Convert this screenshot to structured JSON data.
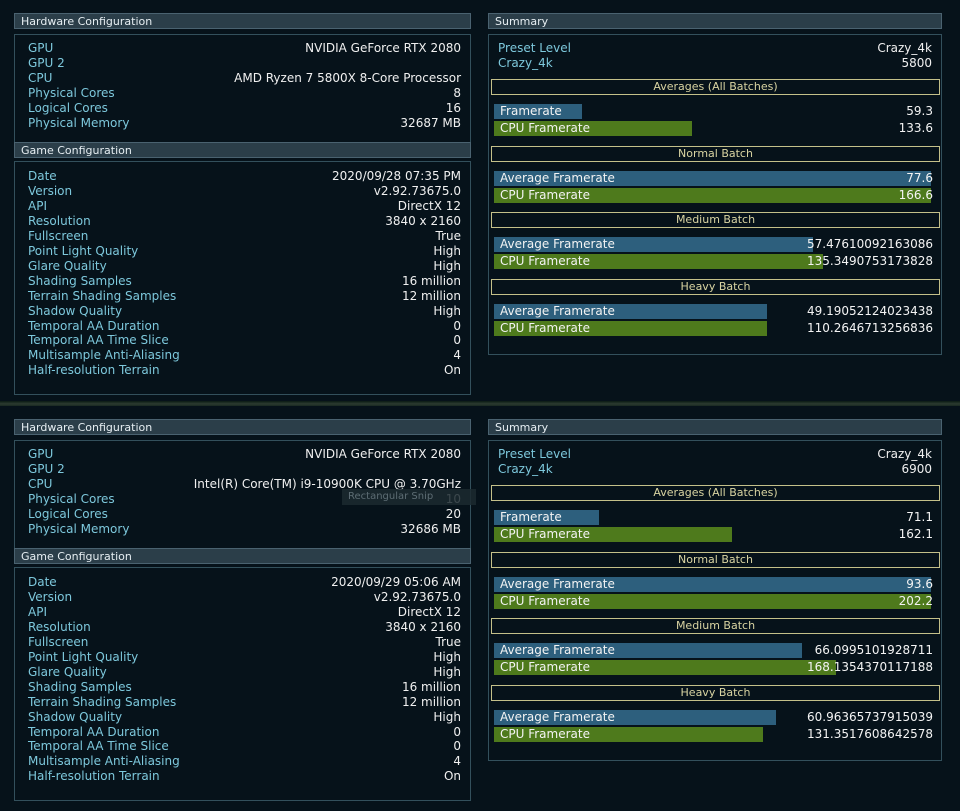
{
  "screenshots": [
    {
      "hardware": {
        "title": "Hardware Configuration",
        "rows": [
          {
            "label": "GPU",
            "value": "NVIDIA GeForce RTX 2080"
          },
          {
            "label": "GPU 2",
            "value": ""
          },
          {
            "label": "CPU",
            "value": "AMD Ryzen 7 5800X 8-Core Processor"
          },
          {
            "label": "Physical Cores",
            "value": "8"
          },
          {
            "label": "Logical Cores",
            "value": "16"
          },
          {
            "label": "Physical Memory",
            "value": "32687 MB"
          }
        ]
      },
      "game": {
        "title": "Game Configuration",
        "rows": [
          {
            "label": "Date",
            "value": "2020/09/28 07:35 PM"
          },
          {
            "label": "Version",
            "value": "v2.92.73675.0"
          },
          {
            "label": "API",
            "value": "DirectX 12"
          },
          {
            "label": "Resolution",
            "value": "3840 x 2160"
          },
          {
            "label": "Fullscreen",
            "value": "True"
          },
          {
            "label": "Point Light Quality",
            "value": "High"
          },
          {
            "label": "Glare Quality",
            "value": "High"
          },
          {
            "label": "Shading Samples",
            "value": "16 million"
          },
          {
            "label": "Terrain Shading Samples",
            "value": "12 million"
          },
          {
            "label": "Shadow Quality",
            "value": "High"
          },
          {
            "label": "Temporal AA Duration",
            "value": "0"
          },
          {
            "label": "Temporal AA Time Slice",
            "value": "0"
          },
          {
            "label": "Multisample Anti-Aliasing",
            "value": "4"
          },
          {
            "label": "Half-resolution Terrain",
            "value": "On"
          }
        ]
      },
      "summary": {
        "title": "Summary",
        "preset_label": "Preset Level",
        "preset_value": "Crazy_4k",
        "score_label": "Crazy_4k",
        "score_value": "5800",
        "sections": [
          {
            "title": "Averages (All Batches)",
            "bars": [
              {
                "label": "Framerate",
                "value": "59.3",
                "fraction": 0.198,
                "color": "blue"
              },
              {
                "label": "CPU Framerate",
                "value": "133.6",
                "fraction": 0.446,
                "color": "green"
              }
            ]
          },
          {
            "title": "Normal Batch",
            "bars": [
              {
                "label": "Average Framerate",
                "value": "77.6",
                "fraction": 0.986,
                "color": "blue"
              },
              {
                "label": "CPU Framerate",
                "value": "166.6",
                "fraction": 0.986,
                "color": "green"
              }
            ]
          },
          {
            "title": "Medium Batch",
            "bars": [
              {
                "label": "Average Framerate",
                "value": "57.47610092163086",
                "fraction": 0.72,
                "color": "blue"
              },
              {
                "label": "CPU Framerate",
                "value": "135.3490753173828",
                "fraction": 0.742,
                "color": "green"
              }
            ]
          },
          {
            "title": "Heavy Batch",
            "bars": [
              {
                "label": "Average Framerate",
                "value": "49.19052124023438",
                "fraction": 0.616,
                "color": "blue"
              },
              {
                "label": "CPU Framerate",
                "value": "110.2646713256836",
                "fraction": 0.616,
                "color": "green"
              }
            ]
          }
        ]
      }
    },
    {
      "hardware": {
        "title": "Hardware Configuration",
        "rows": [
          {
            "label": "GPU",
            "value": "NVIDIA GeForce RTX 2080"
          },
          {
            "label": "GPU 2",
            "value": ""
          },
          {
            "label": "CPU",
            "value": "Intel(R) Core(TM) i9-10900K CPU @ 3.70GHz"
          },
          {
            "label": "Physical Cores",
            "value": "10"
          },
          {
            "label": "Logical Cores",
            "value": "20"
          },
          {
            "label": "Physical Memory",
            "value": "32686 MB"
          }
        ]
      },
      "game": {
        "title": "Game Configuration",
        "rows": [
          {
            "label": "Date",
            "value": "2020/09/29 05:06 AM"
          },
          {
            "label": "Version",
            "value": "v2.92.73675.0"
          },
          {
            "label": "API",
            "value": "DirectX 12"
          },
          {
            "label": "Resolution",
            "value": "3840 x 2160"
          },
          {
            "label": "Fullscreen",
            "value": "True"
          },
          {
            "label": "Point Light Quality",
            "value": "High"
          },
          {
            "label": "Glare Quality",
            "value": "High"
          },
          {
            "label": "Shading Samples",
            "value": "16 million"
          },
          {
            "label": "Terrain Shading Samples",
            "value": "12 million"
          },
          {
            "label": "Shadow Quality",
            "value": "High"
          },
          {
            "label": "Temporal AA Duration",
            "value": "0"
          },
          {
            "label": "Temporal AA Time Slice",
            "value": "0"
          },
          {
            "label": "Multisample Anti-Aliasing",
            "value": "4"
          },
          {
            "label": "Half-resolution Terrain",
            "value": "On"
          }
        ]
      },
      "summary": {
        "title": "Summary",
        "preset_label": "Preset Level",
        "preset_value": "Crazy_4k",
        "score_label": "Crazy_4k",
        "score_value": "6900",
        "sections": [
          {
            "title": "Averages (All Batches)",
            "bars": [
              {
                "label": "Framerate",
                "value": "71.1",
                "fraction": 0.237,
                "color": "blue"
              },
              {
                "label": "CPU Framerate",
                "value": "162.1",
                "fraction": 0.537,
                "color": "green"
              }
            ]
          },
          {
            "title": "Normal Batch",
            "bars": [
              {
                "label": "Average Framerate",
                "value": "93.6",
                "fraction": 0.986,
                "color": "blue"
              },
              {
                "label": "CPU Framerate",
                "value": "202.2",
                "fraction": 0.986,
                "color": "green"
              }
            ]
          },
          {
            "title": "Medium Batch",
            "bars": [
              {
                "label": "Average Framerate",
                "value": "66.0995101928711",
                "fraction": 0.696,
                "color": "blue"
              },
              {
                "label": "CPU Framerate",
                "value": "168.1354370117188",
                "fraction": 0.773,
                "color": "green"
              }
            ]
          },
          {
            "title": "Heavy Batch",
            "bars": [
              {
                "label": "Average Framerate",
                "value": "60.96365737915039",
                "fraction": 0.637,
                "color": "blue"
              },
              {
                "label": "CPU Framerate",
                "value": "131.3517608642578",
                "fraction": 0.607,
                "color": "green"
              }
            ]
          }
        ]
      }
    }
  ],
  "tooltip": {
    "text": "Rectangular Snip"
  }
}
